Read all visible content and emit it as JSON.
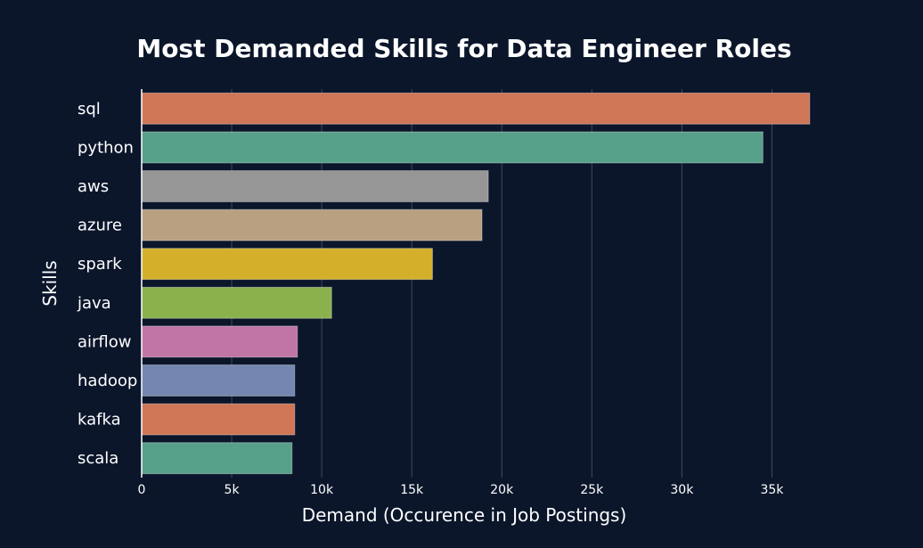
{
  "chart_data": {
    "type": "bar",
    "orientation": "horizontal",
    "title": "Most Demanded Skills for Data Engineer Roles",
    "xlabel": "Demand (Occurence in Job Postings)",
    "ylabel": "Skills",
    "categories": [
      "sql",
      "python",
      "aws",
      "azure",
      "spark",
      "java",
      "airflow",
      "hadoop",
      "kafka",
      "scala"
    ],
    "values": [
      37100,
      34500,
      19250,
      18900,
      16150,
      10550,
      8650,
      8500,
      8500,
      8350
    ],
    "colors": [
      "#cf7656",
      "#57a18a",
      "#969696",
      "#b8a080",
      "#d4b02a",
      "#8bb14c",
      "#c075a6",
      "#7587b0",
      "#cf7656",
      "#57a18a"
    ],
    "xlim": [
      0,
      37800
    ],
    "xticks": [
      0,
      5000,
      10000,
      15000,
      20000,
      25000,
      30000,
      35000
    ],
    "xtick_labels": [
      "0",
      "5k",
      "10k",
      "15k",
      "20k",
      "25k",
      "30k",
      "35k"
    ],
    "grid": true,
    "background": "#0b162b"
  }
}
